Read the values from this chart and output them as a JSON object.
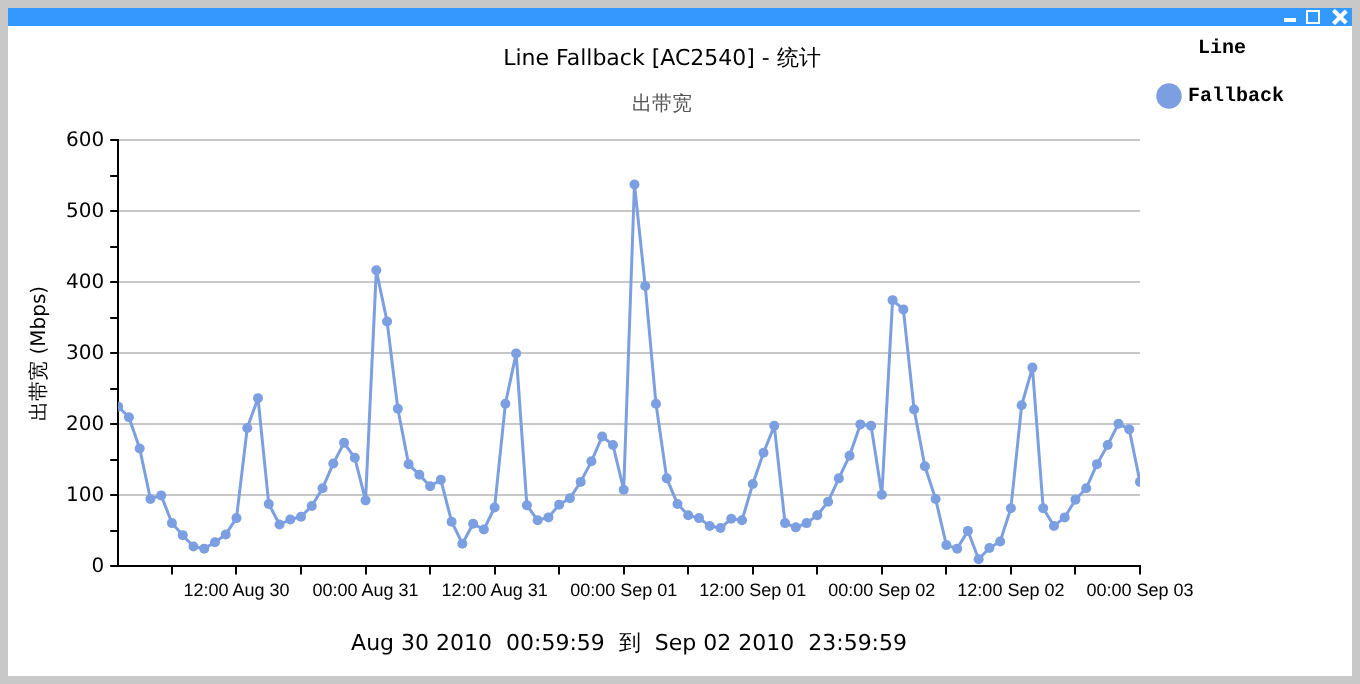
{
  "chart_data": {
    "type": "line",
    "title": "Line Fallback [AC2540] - 统计",
    "subtitle": "出带宽",
    "ylabel": "出带宽 (Mbps)",
    "legend_title": "Line",
    "annotations": [
      "Aug 30 2010  00:59:59  到  Sep 02 2010  23:59:59"
    ],
    "x": [
      "2010-08-30T01:00",
      "2010-08-30T02:00",
      "2010-08-30T03:00",
      "2010-08-30T04:00",
      "2010-08-30T05:00",
      "2010-08-30T06:00",
      "2010-08-30T07:00",
      "2010-08-30T08:00",
      "2010-08-30T09:00",
      "2010-08-30T10:00",
      "2010-08-30T11:00",
      "2010-08-30T12:00",
      "2010-08-30T13:00",
      "2010-08-30T14:00",
      "2010-08-30T15:00",
      "2010-08-30T16:00",
      "2010-08-30T17:00",
      "2010-08-30T18:00",
      "2010-08-30T19:00",
      "2010-08-30T20:00",
      "2010-08-30T21:00",
      "2010-08-30T22:00",
      "2010-08-30T23:00",
      "2010-08-31T00:00",
      "2010-08-31T01:00",
      "2010-08-31T02:00",
      "2010-08-31T03:00",
      "2010-08-31T04:00",
      "2010-08-31T05:00",
      "2010-08-31T06:00",
      "2010-08-31T07:00",
      "2010-08-31T08:00",
      "2010-08-31T09:00",
      "2010-08-31T10:00",
      "2010-08-31T11:00",
      "2010-08-31T12:00",
      "2010-08-31T13:00",
      "2010-08-31T14:00",
      "2010-08-31T15:00",
      "2010-08-31T16:00",
      "2010-08-31T17:00",
      "2010-08-31T18:00",
      "2010-08-31T19:00",
      "2010-08-31T20:00",
      "2010-08-31T21:00",
      "2010-08-31T22:00",
      "2010-08-31T23:00",
      "2010-09-01T00:00",
      "2010-09-01T01:00",
      "2010-09-01T02:00",
      "2010-09-01T03:00",
      "2010-09-01T04:00",
      "2010-09-01T05:00",
      "2010-09-01T06:00",
      "2010-09-01T07:00",
      "2010-09-01T08:00",
      "2010-09-01T09:00",
      "2010-09-01T10:00",
      "2010-09-01T11:00",
      "2010-09-01T12:00",
      "2010-09-01T13:00",
      "2010-09-01T14:00",
      "2010-09-01T15:00",
      "2010-09-01T16:00",
      "2010-09-01T17:00",
      "2010-09-01T18:00",
      "2010-09-01T19:00",
      "2010-09-01T20:00",
      "2010-09-01T21:00",
      "2010-09-01T22:00",
      "2010-09-01T23:00",
      "2010-09-02T00:00",
      "2010-09-02T01:00",
      "2010-09-02T02:00",
      "2010-09-02T03:00",
      "2010-09-02T04:00",
      "2010-09-02T05:00",
      "2010-09-02T06:00",
      "2010-09-02T07:00",
      "2010-09-02T08:00",
      "2010-09-02T09:00",
      "2010-09-02T10:00",
      "2010-09-02T11:00",
      "2010-09-02T12:00",
      "2010-09-02T13:00",
      "2010-09-02T14:00",
      "2010-09-02T15:00",
      "2010-09-02T16:00",
      "2010-09-02T17:00",
      "2010-09-02T18:00",
      "2010-09-02T19:00",
      "2010-09-02T20:00",
      "2010-09-02T21:00",
      "2010-09-02T22:00",
      "2010-09-02T23:00",
      "2010-09-03T00:00"
    ],
    "series": [
      {
        "name": "Fallback",
        "color": "#7b9fe0",
        "values": [
          225,
          210,
          166,
          95,
          100,
          61,
          44,
          28,
          25,
          34,
          45,
          68,
          195,
          237,
          88,
          59,
          66,
          70,
          85,
          110,
          145,
          174,
          153,
          93,
          417,
          345,
          222,
          144,
          129,
          113,
          122,
          63,
          32,
          60,
          52,
          83,
          229,
          300,
          86,
          65,
          69,
          87,
          96,
          119,
          148,
          183,
          171,
          108,
          538,
          395,
          229,
          124,
          88,
          72,
          68,
          57,
          54,
          67,
          65,
          116,
          160,
          198,
          61,
          55,
          61,
          72,
          91,
          124,
          156,
          200,
          198,
          101,
          375,
          362,
          221,
          141,
          95,
          30,
          25,
          50,
          10,
          26,
          35,
          82,
          227,
          280,
          82,
          57,
          69,
          94,
          110,
          144,
          171,
          201,
          193,
          119
        ]
      }
    ],
    "xlim": [
      "2010-08-30T01:00",
      "2010-09-03T00:00"
    ],
    "xticks": [
      {
        "value": "2010-08-30T06:00",
        "label": null
      },
      {
        "value": "2010-08-30T12:00",
        "label": "12:00 Aug 30"
      },
      {
        "value": "2010-08-30T18:00",
        "label": null
      },
      {
        "value": "2010-08-31T00:00",
        "label": "00:00 Aug 31"
      },
      {
        "value": "2010-08-31T06:00",
        "label": null
      },
      {
        "value": "2010-08-31T12:00",
        "label": "12:00 Aug 31"
      },
      {
        "value": "2010-08-31T18:00",
        "label": null
      },
      {
        "value": "2010-09-01T00:00",
        "label": "00:00 Sep 01"
      },
      {
        "value": "2010-09-01T06:00",
        "label": null
      },
      {
        "value": "2010-09-01T12:00",
        "label": "12:00 Sep 01"
      },
      {
        "value": "2010-09-01T18:00",
        "label": null
      },
      {
        "value": "2010-09-02T00:00",
        "label": "00:00 Sep 02"
      },
      {
        "value": "2010-09-02T06:00",
        "label": null
      },
      {
        "value": "2010-09-02T12:00",
        "label": "12:00 Sep 02"
      },
      {
        "value": "2010-09-02T18:00",
        "label": null
      },
      {
        "value": "2010-09-03T00:00",
        "label": "00:00 Sep 03"
      }
    ],
    "ylim": [
      0,
      600
    ],
    "yticks": [
      0,
      {
        "value": 50,
        "label": null
      },
      100,
      {
        "value": 150,
        "label": null
      },
      200,
      {
        "value": 250,
        "label": null
      },
      300,
      {
        "value": 350,
        "label": null
      },
      400,
      {
        "value": 450,
        "label": null
      },
      500,
      {
        "value": 550,
        "label": null
      },
      600
    ],
    "grid": "y",
    "legend": "right",
    "marker": "circle",
    "line_style": "solid"
  }
}
